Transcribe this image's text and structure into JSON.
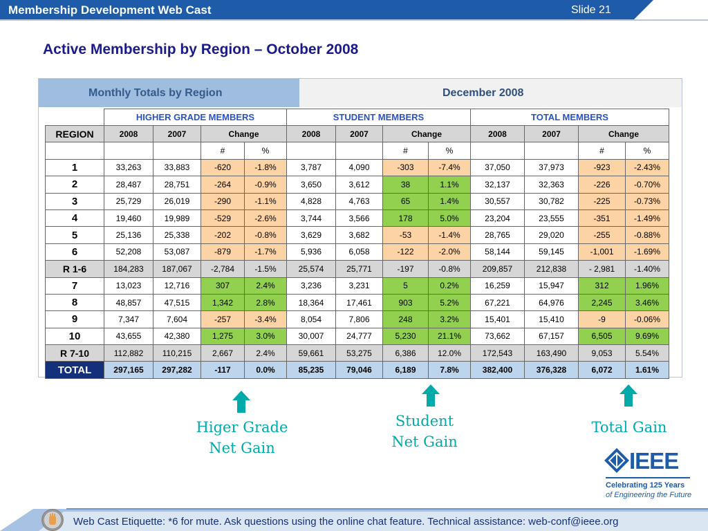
{
  "header": {
    "title": "Membership Development Web Cast",
    "slide": "Slide 21"
  },
  "slide_title": "Active Membership by Region – October 2008",
  "table": {
    "banner_left": "Monthly Totals by Region",
    "banner_right": "December 2008",
    "groups": [
      "HIGHER GRADE  MEMBERS",
      "STUDENT MEMBERS",
      "TOTAL MEMBERS"
    ],
    "region_header": "REGION",
    "year_headers": [
      "2008",
      "2007"
    ],
    "change_header": "Change",
    "sub_headers": [
      "#",
      "%"
    ],
    "rows": [
      {
        "region": "1",
        "hg": [
          "33,263",
          "33,883",
          "-620",
          "-1.8%"
        ],
        "st": [
          "3,787",
          "4,090",
          "-303",
          "-7.4%"
        ],
        "tot": [
          "37,050",
          "37,973",
          "-923",
          "-2.43%"
        ]
      },
      {
        "region": "2",
        "hg": [
          "28,487",
          "28,751",
          "-264",
          "-0.9%"
        ],
        "st": [
          "3,650",
          "3,612",
          "38",
          "1.1%"
        ],
        "tot": [
          "32,137",
          "32,363",
          "-226",
          "-0.70%"
        ]
      },
      {
        "region": "3",
        "hg": [
          "25,729",
          "26,019",
          "-290",
          "-1.1%"
        ],
        "st": [
          "4,828",
          "4,763",
          "65",
          "1.4%"
        ],
        "tot": [
          "30,557",
          "30,782",
          "-225",
          "-0.73%"
        ]
      },
      {
        "region": "4",
        "hg": [
          "19,460",
          "19,989",
          "-529",
          "-2.6%"
        ],
        "st": [
          "3,744",
          "3,566",
          "178",
          "5.0%"
        ],
        "tot": [
          "23,204",
          "23,555",
          "-351",
          "-1.49%"
        ]
      },
      {
        "region": "5",
        "hg": [
          "25,136",
          "25,338",
          "-202",
          "-0.8%"
        ],
        "st": [
          "3,629",
          "3,682",
          "-53",
          "-1.4%"
        ],
        "tot": [
          "28,765",
          "29,020",
          "-255",
          "-0.88%"
        ]
      },
      {
        "region": "6",
        "hg": [
          "52,208",
          "53,087",
          "-879",
          "-1.7%"
        ],
        "st": [
          "5,936",
          "6,058",
          "-122",
          "-2.0%"
        ],
        "tot": [
          "58,144",
          "59,145",
          "-1,001",
          "-1.69%"
        ]
      },
      {
        "region": "R 1-6",
        "hg": [
          "184,283",
          "187,067",
          "-2,784",
          "-1.5%"
        ],
        "st": [
          "25,574",
          "25,771",
          "-197",
          "-0.8%"
        ],
        "tot": [
          "209,857",
          "212,838",
          "- 2,981",
          "-1.40%"
        ]
      },
      {
        "region": "7",
        "hg": [
          "13,023",
          "12,716",
          "307",
          "2.4%"
        ],
        "st": [
          "3,236",
          "3,231",
          "5",
          "0.2%"
        ],
        "tot": [
          "16,259",
          "15,947",
          "312",
          "1.96%"
        ]
      },
      {
        "region": "8",
        "hg": [
          "48,857",
          "47,515",
          "1,342",
          "2.8%"
        ],
        "st": [
          "18,364",
          "17,461",
          "903",
          "5.2%"
        ],
        "tot": [
          "67,221",
          "64,976",
          "2,245",
          "3.46%"
        ]
      },
      {
        "region": "9",
        "hg": [
          "7,347",
          "7,604",
          "-257",
          "-3.4%"
        ],
        "st": [
          "8,054",
          "7,806",
          "248",
          "3.2%"
        ],
        "tot": [
          "15,401",
          "15,410",
          "-9",
          "-0.06%"
        ]
      },
      {
        "region": "10",
        "hg": [
          "43,655",
          "42,380",
          "1,275",
          "3.0%"
        ],
        "st": [
          "30,007",
          "24,777",
          "5,230",
          "21.1%"
        ],
        "tot": [
          "73,662",
          "67,157",
          "6,505",
          "9.69%"
        ]
      },
      {
        "region": "R 7-10",
        "hg": [
          "112,882",
          "110,215",
          "2,667",
          "2.4%"
        ],
        "st": [
          "59,661",
          "53,275",
          "6,386",
          "12.0%"
        ],
        "tot": [
          "172,543",
          "163,490",
          "9,053",
          "5.54%"
        ]
      },
      {
        "region": "TOTAL",
        "hg": [
          "297,165",
          "297,282",
          "-117",
          "0.0%"
        ],
        "st": [
          "85,235",
          "79,046",
          "6,189",
          "7.8%"
        ],
        "tot": [
          "382,400",
          "376,328",
          "6,072",
          "1.61%"
        ]
      }
    ]
  },
  "labels": {
    "higher_grade": "Higer Grade\nNet Gain",
    "student": "Student\nNet Gain",
    "total": "Total Gain"
  },
  "logo": {
    "word": "IEEE",
    "tagline1": "Celebrating 125 Years",
    "tagline2": "of Engineering the Future"
  },
  "footer": {
    "text": "Web Cast Etiquette: *6 for mute.  Ask questions using the online chat feature.  Technical assistance: web-conf@ieee.org"
  },
  "colors": {
    "header_blue": "#1e5ba8",
    "title_navy": "#1a1a8c",
    "negative_fill": "#fbd3a5",
    "positive_fill": "#92d050",
    "arrow_teal": "#00aaa8"
  }
}
